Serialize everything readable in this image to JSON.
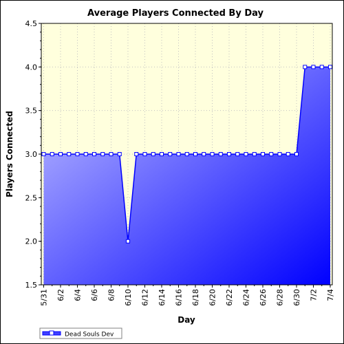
{
  "chart_data": {
    "type": "area",
    "title": "Average Players Connected By Day",
    "xlabel": "Day",
    "ylabel": "Players Connected",
    "ylim": [
      1.5,
      4.5
    ],
    "yticks": [
      "1.5",
      "2.0",
      "2.5",
      "3.0",
      "3.5",
      "4.0",
      "4.5"
    ],
    "x": [
      "5/31",
      "6/1",
      "6/2",
      "6/3",
      "6/4",
      "6/5",
      "6/6",
      "6/7",
      "6/8",
      "6/9",
      "6/10",
      "6/11",
      "6/12",
      "6/13",
      "6/14",
      "6/15",
      "6/16",
      "6/17",
      "6/18",
      "6/19",
      "6/20",
      "6/21",
      "6/22",
      "6/23",
      "6/24",
      "6/25",
      "6/26",
      "6/27",
      "6/28",
      "6/29",
      "6/30",
      "7/1",
      "7/2",
      "7/3",
      "7/4"
    ],
    "xtick_labels": [
      "5/31",
      "6/2",
      "6/4",
      "6/6",
      "6/8",
      "6/10",
      "6/12",
      "6/14",
      "6/16",
      "6/18",
      "6/20",
      "6/22",
      "6/24",
      "6/26",
      "6/28",
      "6/30",
      "7/2",
      "7/4"
    ],
    "series": [
      {
        "name": "Dead Souls Dev",
        "values": [
          3,
          3,
          3,
          3,
          3,
          3,
          3,
          3,
          3,
          3,
          2,
          3,
          3,
          3,
          3,
          3,
          3,
          3,
          3,
          3,
          3,
          3,
          3,
          3,
          3,
          3,
          3,
          3,
          3,
          3,
          3,
          4,
          4,
          4,
          4
        ]
      }
    ],
    "grid": true,
    "legend": "bottom-left",
    "colors": {
      "plot_background": "#ffffdd",
      "area_light": "#c4c4ff",
      "area_dark": "#0000ff",
      "line": "#0000ff",
      "marker_fill": "#ffffff"
    }
  }
}
